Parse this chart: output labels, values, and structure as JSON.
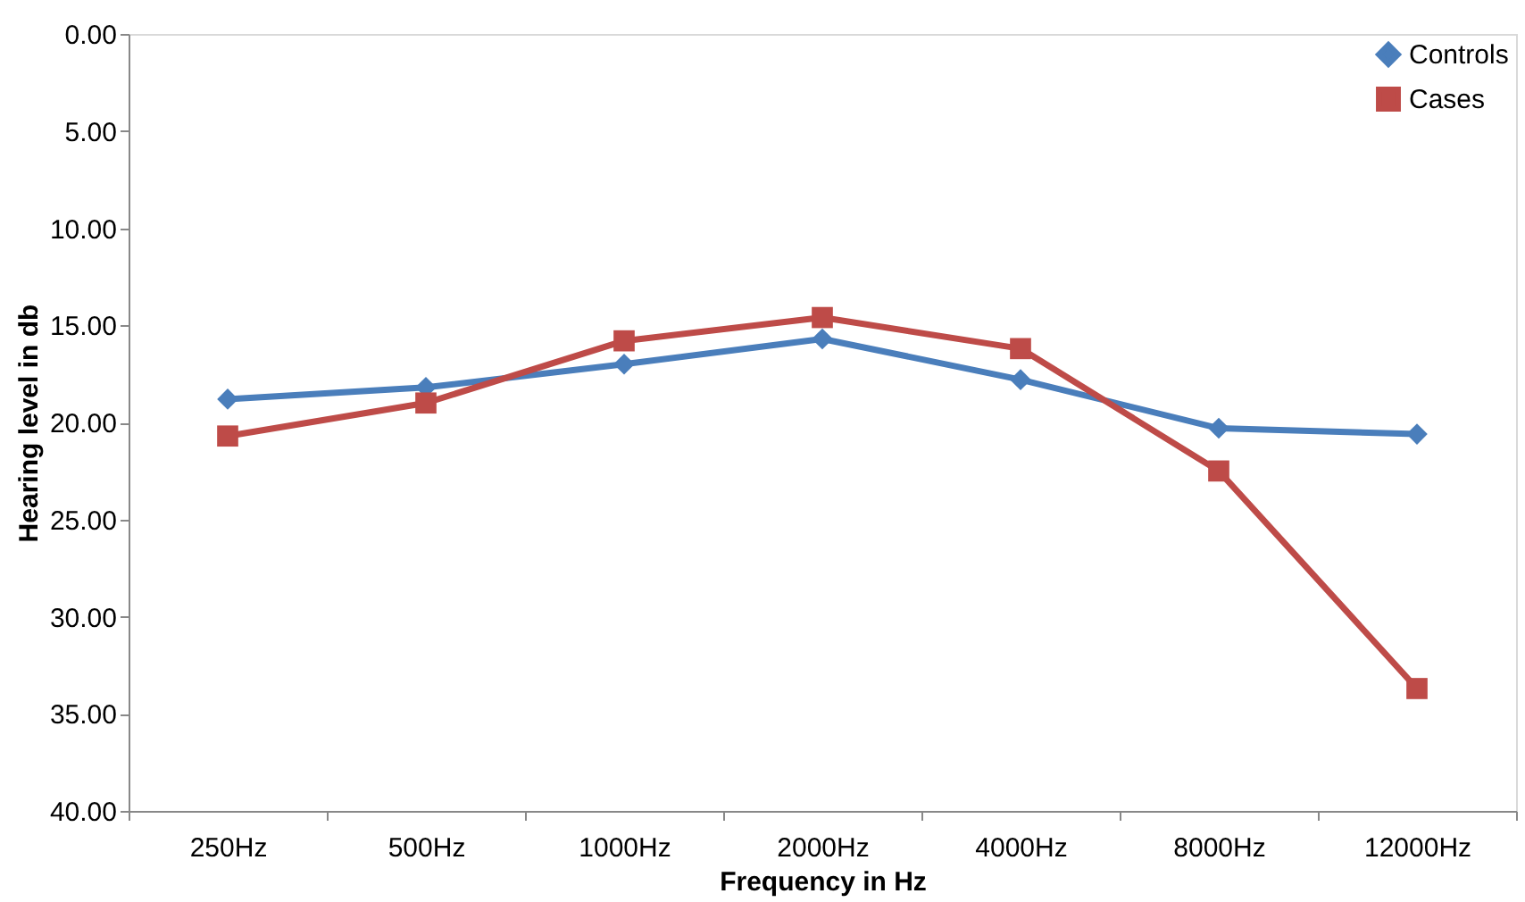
{
  "chart_data": {
    "type": "line",
    "xlabel": "Frequency in Hz",
    "ylabel": "Hearing level in db",
    "categories": [
      "250Hz",
      "500Hz",
      "1000Hz",
      "2000Hz",
      "4000Hz",
      "8000Hz",
      "12000Hz"
    ],
    "series": [
      {
        "name": "Controls",
        "color": "#4a7ebb",
        "marker": "diamond",
        "values": [
          18.8,
          18.2,
          17.0,
          15.7,
          17.8,
          20.3,
          20.6
        ]
      },
      {
        "name": "Cases",
        "color": "#be4b48",
        "marker": "square",
        "values": [
          20.7,
          19.0,
          15.8,
          14.6,
          16.2,
          22.5,
          33.7
        ]
      }
    ],
    "ylim": [
      40,
      0
    ],
    "yticks": [
      {
        "value": 0,
        "label": "0.00"
      },
      {
        "value": 5,
        "label": "5.00"
      },
      {
        "value": 10,
        "label": "10.00"
      },
      {
        "value": 15,
        "label": "15.00"
      },
      {
        "value": 20,
        "label": "20.00"
      },
      {
        "value": 25,
        "label": "25.00"
      },
      {
        "value": 30,
        "label": "30.00"
      },
      {
        "value": 35,
        "label": "35.00"
      },
      {
        "value": 40,
        "label": "40.00"
      }
    ],
    "grid": false,
    "legend": "top right",
    "line_style": "solid"
  }
}
